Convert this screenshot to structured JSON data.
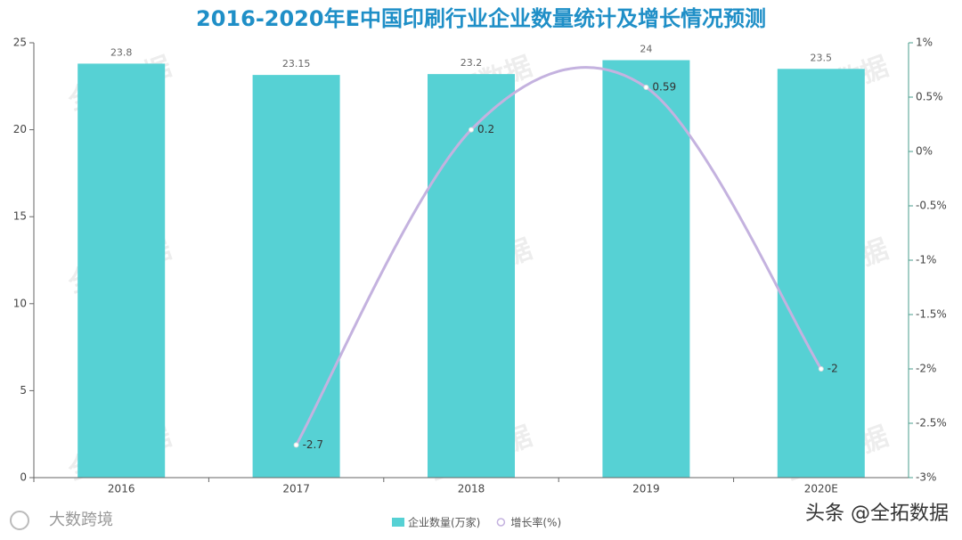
{
  "chart_data": {
    "type": "bar",
    "title": "2016-2020年E中国印刷行业企业数量统计及增长情况预测",
    "categories": [
      "2016",
      "2017",
      "2018",
      "2019",
      "2020E"
    ],
    "series": [
      {
        "name": "企业数量(万家)",
        "type": "bar",
        "color": "#56d1d4",
        "values": [
          23.8,
          23.15,
          23.2,
          24,
          23.5
        ]
      },
      {
        "name": "增长率(%)",
        "type": "line",
        "axis": "y2",
        "color": "#c4b2df",
        "values": [
          null,
          -2.7,
          0.2,
          0.59,
          -2
        ]
      }
    ],
    "ylim": [
      0,
      25
    ],
    "yticks": [
      0,
      5,
      10,
      15,
      20,
      25
    ],
    "y2lim": [
      -3,
      1
    ],
    "y2ticks": [
      {
        "value": 1,
        "label": "1%"
      },
      {
        "value": 0.5,
        "label": "0.5%"
      },
      {
        "value": 0,
        "label": "0%"
      },
      {
        "value": -0.5,
        "label": "-0.5%"
      },
      {
        "value": -1,
        "label": "-1%"
      },
      {
        "value": -1.5,
        "label": "-1.5%"
      },
      {
        "value": -2,
        "label": "-2%"
      },
      {
        "value": -2.5,
        "label": "-2.5%"
      },
      {
        "value": -3,
        "label": "-3%"
      }
    ],
    "legend": "bottom",
    "watermark": "全拓数据"
  },
  "footer": {
    "left": "大数跨境",
    "right": "头条 @全拓数据"
  }
}
